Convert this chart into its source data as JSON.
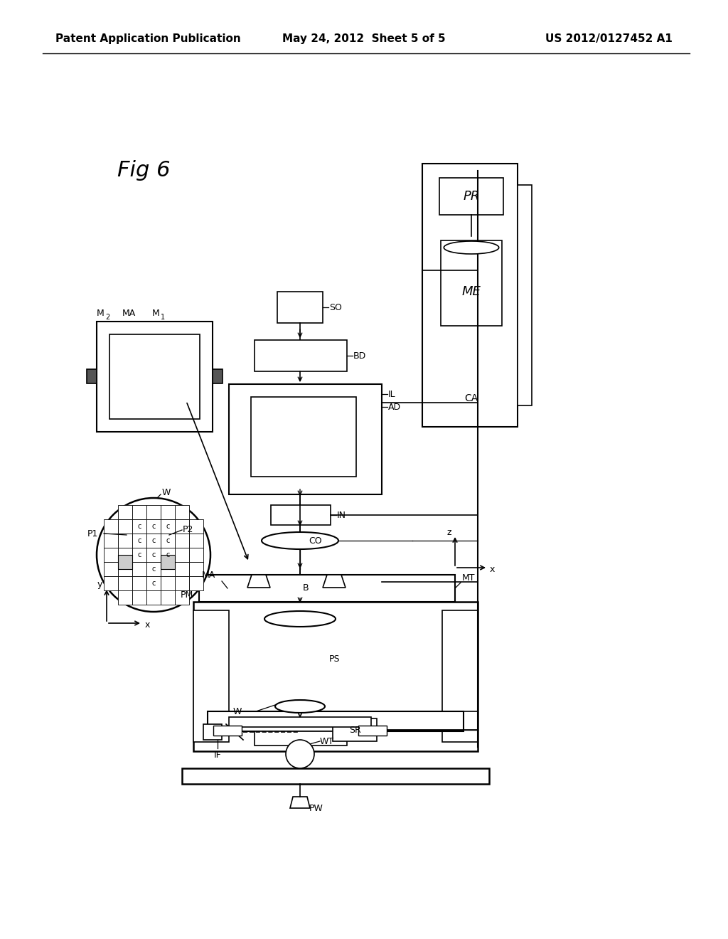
{
  "title": "Fig 6",
  "header_left": "Patent Application Publication",
  "header_center": "May 24, 2012  Sheet 5 of 5",
  "header_right": "US 2012/0127452 A1",
  "bg_color": "#ffffff",
  "line_color": "#000000",
  "text_color": "#000000",
  "fig_label": "Fig 6",
  "labels": {
    "SO": "SO",
    "BD": "BD",
    "IL": "IL",
    "AD": "AD",
    "IN": "IN",
    "CO": "CO",
    "MA": "MA",
    "B": "B",
    "MT": "MT",
    "PM": "PM",
    "PS": "PS",
    "W": "W",
    "SR": "SR",
    "WT": "WT",
    "IF": "IF",
    "PW": "PW",
    "PR": "PR",
    "ME": "ME",
    "CA": "CA",
    "P1": "P1",
    "P2": "P2",
    "M1": "M",
    "M2": "M",
    "z": "z",
    "x": "x",
    "y": "y"
  }
}
